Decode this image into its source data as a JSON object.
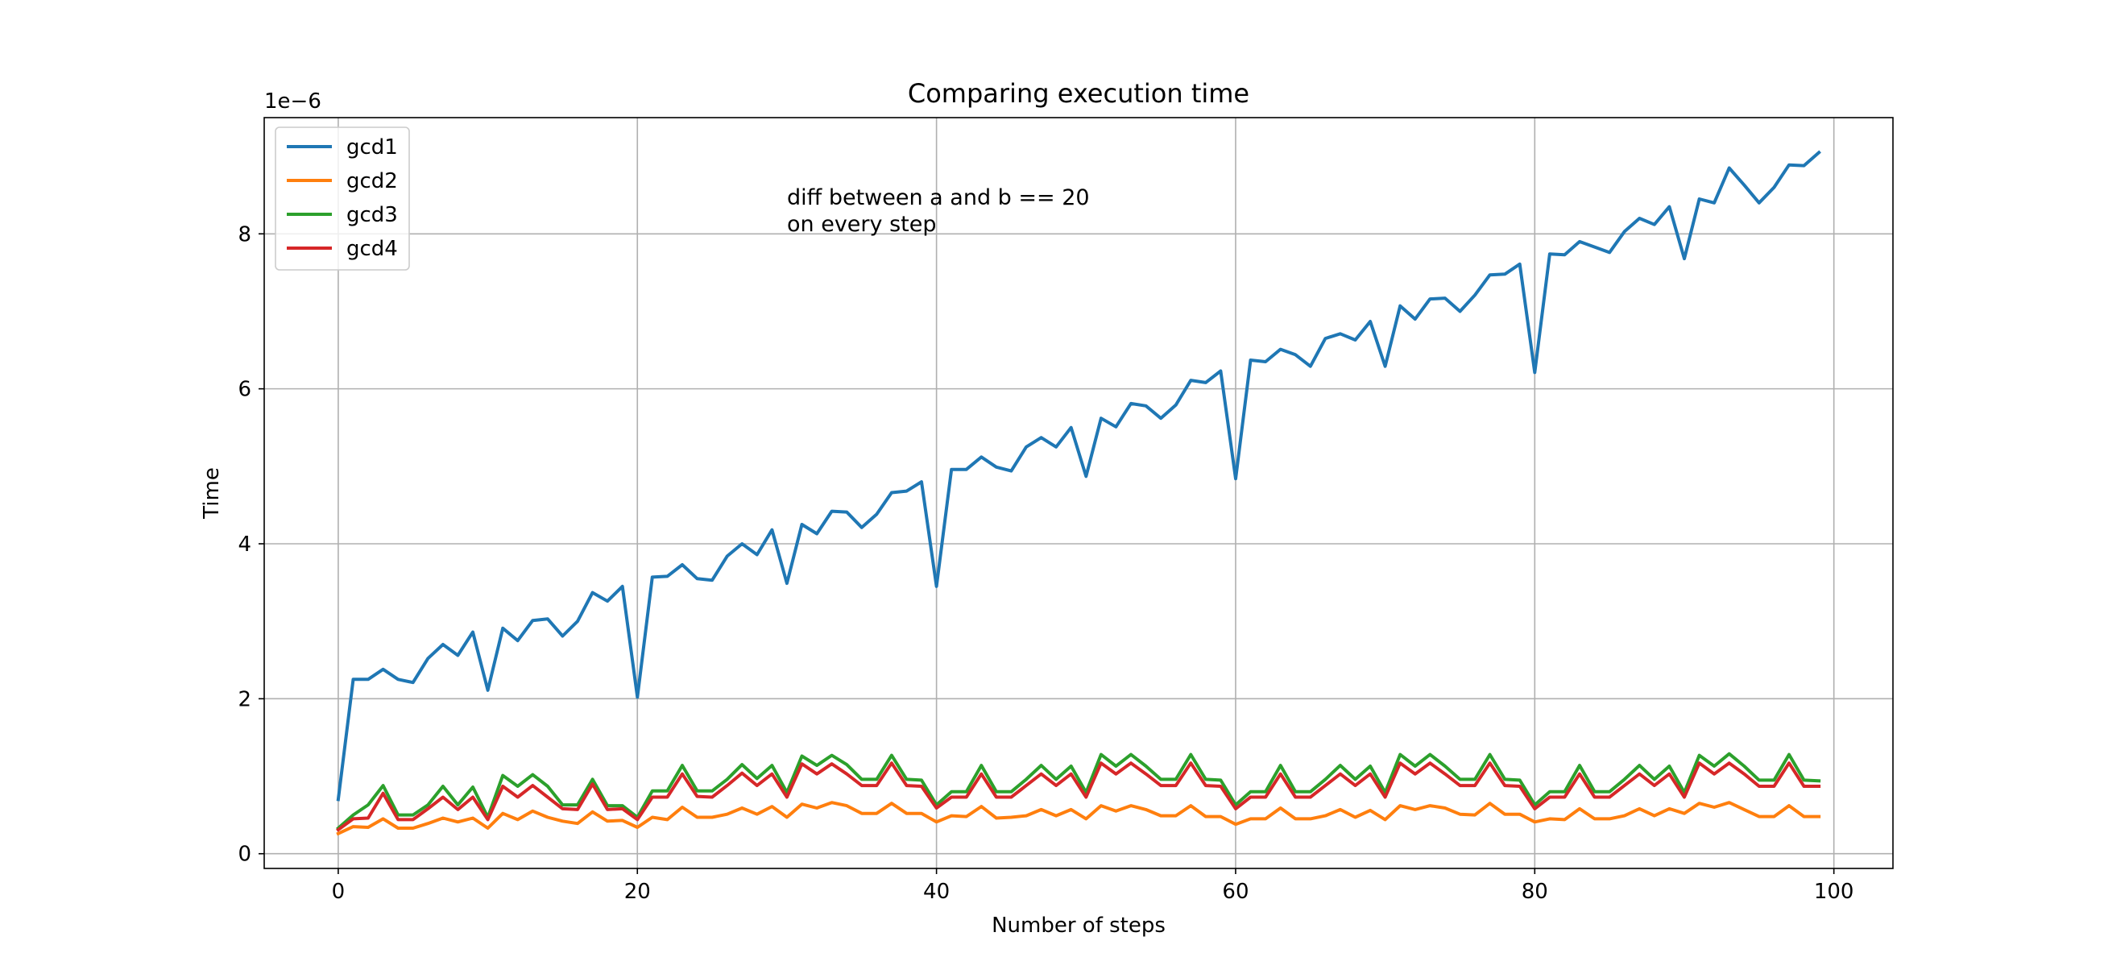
{
  "chart_data": {
    "type": "line",
    "title": "Comparing execution time",
    "xlabel": "Number of steps",
    "ylabel": "Time",
    "y_offset_label": "1e−6",
    "annotation_lines": [
      "diff between a and b == 20",
      "on every step"
    ],
    "xlim": [
      -4.95,
      103.95
    ],
    "ylim": [
      -0.19,
      9.5
    ],
    "x_ticks": [
      0,
      20,
      40,
      60,
      80,
      100
    ],
    "x_tick_labels": [
      "0",
      "20",
      "40",
      "60",
      "80",
      "100"
    ],
    "y_ticks": [
      0,
      2,
      4,
      6,
      8
    ],
    "y_tick_labels": [
      "0",
      "2",
      "4",
      "6",
      "8"
    ],
    "grid": true,
    "legend_position": "upper-left",
    "x": [
      0,
      1,
      2,
      3,
      4,
      5,
      6,
      7,
      8,
      9,
      10,
      11,
      12,
      13,
      14,
      15,
      16,
      17,
      18,
      19,
      20,
      21,
      22,
      23,
      24,
      25,
      26,
      27,
      28,
      29,
      30,
      31,
      32,
      33,
      34,
      35,
      36,
      37,
      38,
      39,
      40,
      41,
      42,
      43,
      44,
      45,
      46,
      47,
      48,
      49,
      50,
      51,
      52,
      53,
      54,
      55,
      56,
      57,
      58,
      59,
      60,
      61,
      62,
      63,
      64,
      65,
      66,
      67,
      68,
      69,
      70,
      71,
      72,
      73,
      74,
      75,
      76,
      77,
      78,
      79,
      80,
      81,
      82,
      83,
      84,
      85,
      86,
      87,
      88,
      89,
      90,
      91,
      92,
      93,
      94,
      95,
      96,
      97,
      98,
      99
    ],
    "series": [
      {
        "name": "gcd1",
        "color": "#1f77b4",
        "values": [
          0.7,
          2.25,
          2.25,
          2.38,
          2.25,
          2.21,
          2.52,
          2.7,
          2.56,
          2.86,
          2.11,
          2.91,
          2.75,
          3.01,
          3.03,
          2.81,
          3.0,
          3.37,
          3.26,
          3.45,
          2.02,
          3.57,
          3.58,
          3.73,
          3.55,
          3.53,
          3.84,
          4.0,
          3.86,
          4.18,
          3.49,
          4.25,
          4.13,
          4.42,
          4.41,
          4.21,
          4.38,
          4.66,
          4.68,
          4.8,
          3.45,
          4.96,
          4.96,
          5.12,
          4.99,
          4.94,
          5.25,
          5.37,
          5.25,
          5.5,
          4.87,
          5.62,
          5.51,
          5.81,
          5.78,
          5.62,
          5.79,
          6.11,
          6.08,
          6.23,
          4.84,
          6.37,
          6.35,
          6.51,
          6.44,
          6.29,
          6.65,
          6.71,
          6.63,
          6.87,
          6.29,
          7.07,
          6.9,
          7.16,
          7.17,
          7.0,
          7.21,
          7.47,
          7.48,
          7.61,
          6.21,
          7.74,
          7.73,
          7.9,
          7.83,
          7.76,
          8.03,
          8.2,
          8.12,
          8.35,
          7.68,
          8.45,
          8.4,
          8.85,
          8.63,
          8.4,
          8.6,
          8.89,
          8.88,
          9.05
        ]
      },
      {
        "name": "gcd2",
        "color": "#ff7f0e",
        "values": [
          0.26,
          0.35,
          0.34,
          0.45,
          0.33,
          0.33,
          0.39,
          0.46,
          0.41,
          0.46,
          0.33,
          0.52,
          0.44,
          0.55,
          0.47,
          0.42,
          0.39,
          0.54,
          0.42,
          0.43,
          0.34,
          0.47,
          0.44,
          0.6,
          0.47,
          0.47,
          0.51,
          0.59,
          0.51,
          0.61,
          0.47,
          0.64,
          0.59,
          0.66,
          0.62,
          0.52,
          0.52,
          0.65,
          0.52,
          0.52,
          0.41,
          0.49,
          0.48,
          0.61,
          0.46,
          0.47,
          0.49,
          0.57,
          0.49,
          0.57,
          0.45,
          0.62,
          0.55,
          0.62,
          0.57,
          0.49,
          0.49,
          0.62,
          0.48,
          0.48,
          0.38,
          0.45,
          0.45,
          0.59,
          0.45,
          0.45,
          0.49,
          0.57,
          0.47,
          0.56,
          0.44,
          0.62,
          0.57,
          0.62,
          0.59,
          0.51,
          0.5,
          0.65,
          0.51,
          0.51,
          0.41,
          0.45,
          0.44,
          0.58,
          0.45,
          0.45,
          0.49,
          0.58,
          0.49,
          0.58,
          0.52,
          0.65,
          0.6,
          0.66,
          0.57,
          0.48,
          0.48,
          0.62,
          0.48,
          0.48
        ]
      },
      {
        "name": "gcd3",
        "color": "#2ca02c",
        "values": [
          0.33,
          0.5,
          0.63,
          0.88,
          0.5,
          0.5,
          0.63,
          0.87,
          0.63,
          0.86,
          0.47,
          1.01,
          0.87,
          1.02,
          0.87,
          0.63,
          0.63,
          0.96,
          0.62,
          0.62,
          0.47,
          0.81,
          0.81,
          1.14,
          0.81,
          0.81,
          0.96,
          1.15,
          0.97,
          1.14,
          0.79,
          1.26,
          1.14,
          1.27,
          1.15,
          0.96,
          0.96,
          1.27,
          0.96,
          0.95,
          0.63,
          0.8,
          0.8,
          1.14,
          0.8,
          0.8,
          0.96,
          1.14,
          0.96,
          1.13,
          0.79,
          1.28,
          1.13,
          1.28,
          1.13,
          0.96,
          0.96,
          1.28,
          0.96,
          0.95,
          0.63,
          0.8,
          0.8,
          1.14,
          0.8,
          0.8,
          0.96,
          1.14,
          0.96,
          1.13,
          0.79,
          1.28,
          1.13,
          1.28,
          1.13,
          0.96,
          0.96,
          1.28,
          0.96,
          0.95,
          0.63,
          0.8,
          0.8,
          1.14,
          0.8,
          0.8,
          0.96,
          1.14,
          0.96,
          1.13,
          0.79,
          1.27,
          1.13,
          1.29,
          1.13,
          0.95,
          0.95,
          1.28,
          0.95,
          0.94
        ]
      },
      {
        "name": "gcd4",
        "color": "#d62728",
        "values": [
          0.31,
          0.45,
          0.46,
          0.78,
          0.44,
          0.44,
          0.58,
          0.73,
          0.57,
          0.73,
          0.44,
          0.87,
          0.73,
          0.88,
          0.73,
          0.58,
          0.57,
          0.9,
          0.57,
          0.58,
          0.44,
          0.73,
          0.73,
          1.03,
          0.74,
          0.73,
          0.88,
          1.04,
          0.88,
          1.03,
          0.73,
          1.16,
          1.03,
          1.16,
          1.03,
          0.88,
          0.88,
          1.17,
          0.88,
          0.87,
          0.59,
          0.73,
          0.73,
          1.03,
          0.73,
          0.73,
          0.88,
          1.03,
          0.88,
          1.03,
          0.73,
          1.17,
          1.03,
          1.17,
          1.03,
          0.88,
          0.88,
          1.17,
          0.88,
          0.87,
          0.58,
          0.73,
          0.73,
          1.03,
          0.73,
          0.73,
          0.88,
          1.03,
          0.88,
          1.03,
          0.73,
          1.17,
          1.03,
          1.17,
          1.03,
          0.88,
          0.88,
          1.17,
          0.88,
          0.87,
          0.58,
          0.73,
          0.73,
          1.03,
          0.73,
          0.73,
          0.88,
          1.03,
          0.88,
          1.03,
          0.73,
          1.17,
          1.03,
          1.17,
          1.03,
          0.87,
          0.87,
          1.17,
          0.87,
          0.87
        ]
      }
    ]
  }
}
